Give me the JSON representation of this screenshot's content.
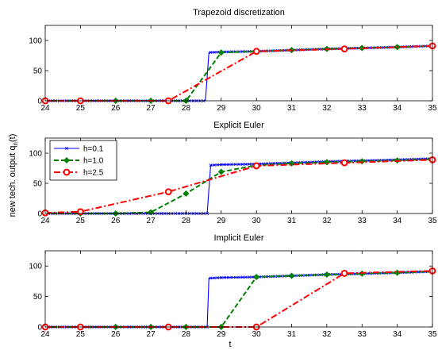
{
  "figure": {
    "xlabel": "t",
    "ylabel_main": "new tech. output q",
    "ylabel_sub": "n",
    "ylabel_tail": "(t)"
  },
  "chart_data": [
    {
      "type": "line",
      "title": "Trapezoid discretization",
      "xlim": [
        24,
        35
      ],
      "ylim": [
        0,
        125
      ],
      "xticks": [
        24,
        25,
        26,
        27,
        28,
        29,
        30,
        31,
        32,
        33,
        34,
        35
      ],
      "yticks": [
        0,
        50,
        100
      ],
      "grid": false,
      "legend": null,
      "series": [
        {
          "name": "h=0.1",
          "color": "#0000ff",
          "style": "solid",
          "marker": "x",
          "x": [
            24,
            28.55,
            28.65,
            29,
            30,
            31,
            32,
            33,
            34,
            35
          ],
          "y": [
            0,
            0,
            80,
            81,
            82,
            84,
            86,
            87.5,
            89,
            91
          ]
        },
        {
          "name": "h=1.0",
          "color": "#008000",
          "style": "dashed",
          "marker": "diamond",
          "x": [
            24,
            25,
            26,
            27,
            28,
            29,
            30,
            31,
            32,
            33,
            34,
            35
          ],
          "y": [
            0,
            0,
            0,
            0,
            0,
            80,
            82,
            84,
            86,
            87.5,
            89,
            91
          ]
        },
        {
          "name": "h=2.5",
          "color": "#ff0000",
          "style": "dashdot",
          "marker": "circle",
          "x": [
            24,
            25,
            27.5,
            30,
            32.5,
            35
          ],
          "y": [
            0,
            0,
            0,
            82,
            86,
            91
          ]
        }
      ]
    },
    {
      "type": "line",
      "title": "Explicit Euler",
      "xlim": [
        24,
        35
      ],
      "ylim": [
        0,
        125
      ],
      "xticks": [
        24,
        25,
        26,
        27,
        28,
        29,
        30,
        31,
        32,
        33,
        34,
        35
      ],
      "yticks": [
        0,
        50,
        100
      ],
      "grid": false,
      "legend": "top-left",
      "series": [
        {
          "name": "h=0.1",
          "color": "#0000ff",
          "style": "solid",
          "marker": "x",
          "x": [
            24,
            28.6,
            28.7,
            29,
            30,
            31,
            32,
            33,
            34,
            35
          ],
          "y": [
            0,
            0,
            80,
            81,
            82,
            84,
            86,
            87.5,
            89,
            91
          ]
        },
        {
          "name": "h=1.0",
          "color": "#008000",
          "style": "dashed",
          "marker": "diamond",
          "x": [
            24,
            25,
            26,
            27,
            28,
            29,
            30,
            31,
            32,
            33,
            34,
            35
          ],
          "y": [
            0,
            0,
            0,
            2,
            33,
            69,
            80,
            83,
            85,
            86.5,
            88,
            90
          ]
        },
        {
          "name": "h=2.5",
          "color": "#ff0000",
          "style": "dashdot",
          "marker": "circle",
          "x": [
            24,
            25,
            27.5,
            30,
            32.5,
            35
          ],
          "y": [
            1,
            3,
            36,
            79,
            84,
            89
          ]
        }
      ]
    },
    {
      "type": "line",
      "title": "Implicit Euler",
      "xlim": [
        24,
        35
      ],
      "ylim": [
        0,
        125
      ],
      "xticks": [
        24,
        25,
        26,
        27,
        28,
        29,
        30,
        31,
        32,
        33,
        34,
        35
      ],
      "yticks": [
        0,
        50,
        100
      ],
      "grid": false,
      "legend": null,
      "series": [
        {
          "name": "h=0.1",
          "color": "#0000ff",
          "style": "solid",
          "marker": "x",
          "x": [
            24,
            28.6,
            28.65,
            29,
            30,
            31,
            32,
            33,
            34,
            35
          ],
          "y": [
            0,
            0,
            80,
            81,
            82,
            84,
            86,
            87.5,
            89,
            91
          ]
        },
        {
          "name": "h=1.0",
          "color": "#008000",
          "style": "dashed",
          "marker": "diamond",
          "x": [
            24,
            25,
            26,
            27,
            28,
            29,
            30,
            31,
            32,
            33,
            34,
            35
          ],
          "y": [
            0,
            0,
            0,
            0,
            0,
            0,
            82,
            84,
            86,
            87.5,
            89,
            91
          ]
        },
        {
          "name": "h=2.5",
          "color": "#ff0000",
          "style": "dashdot",
          "marker": "circle",
          "x": [
            24,
            25,
            27.5,
            30,
            32.5,
            35
          ],
          "y": [
            0,
            0,
            0,
            0,
            88,
            92
          ]
        }
      ]
    }
  ]
}
